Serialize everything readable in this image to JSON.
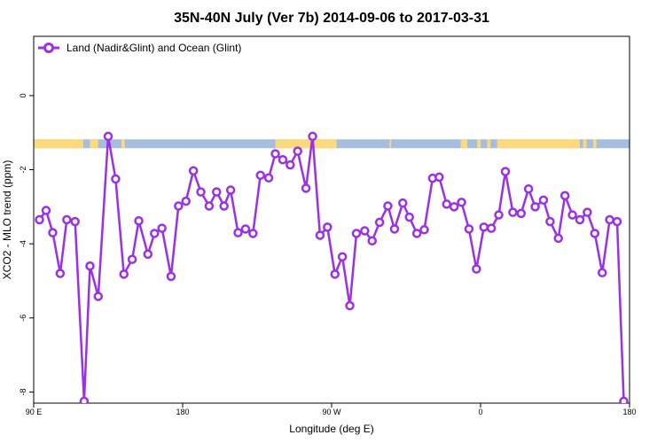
{
  "chart_data": {
    "type": "line",
    "title": "35N-40N July (Ver 7b)   2014-09-06 to 2017-03-31",
    "xlabel": "Longitude (deg E)",
    "ylabel": "XCO2 - MLO trend (ppm)",
    "xlim": [
      90,
      450
    ],
    "ylim": [
      -8.3,
      1.6
    ],
    "x_ticks": [
      {
        "value": 90,
        "label": "90 E"
      },
      {
        "value": 180,
        "label": "180"
      },
      {
        "value": 270,
        "label": "90 W"
      },
      {
        "value": 360,
        "label": "0"
      },
      {
        "value": 450,
        "label": "180"
      }
    ],
    "y_ticks": [
      {
        "value": 0,
        "label": "0"
      },
      {
        "value": -2,
        "label": "-2"
      },
      {
        "value": -4,
        "label": "-4"
      },
      {
        "value": -6,
        "label": "-6"
      },
      {
        "value": -8,
        "label": "-8"
      }
    ],
    "grid": false,
    "legend": {
      "position": "top-left",
      "entries": [
        "Land (Nadir&Glint) and Ocean (Glint)"
      ]
    },
    "colors": {
      "series": "#9b30e6",
      "land": "#fcd97a",
      "ocean": "#a5bddf"
    },
    "surface_band": {
      "y_top": -1.18,
      "y_bottom": -1.42,
      "land_ranges": [
        [
          90,
          120
        ],
        [
          124,
          129
        ],
        [
          143,
          145
        ],
        [
          236,
          273
        ],
        [
          305,
          306
        ],
        [
          348,
          352
        ],
        [
          358,
          360
        ],
        [
          364,
          366
        ],
        [
          370,
          420
        ],
        [
          422,
          424
        ],
        [
          428,
          430
        ]
      ]
    },
    "series": [
      {
        "name": "Land (Nadir&Glint) and Ocean (Glint)",
        "x": [
          93.5,
          97.5,
          101.5,
          106,
          110,
          115,
          120.5,
          124,
          129,
          135,
          139.5,
          144.5,
          149.5,
          153.5,
          159,
          163,
          167.5,
          173,
          177.5,
          182,
          186.5,
          191,
          196,
          200.5,
          205,
          209,
          213.5,
          218,
          222.5,
          227,
          232,
          236,
          240.5,
          245,
          249.5,
          254.5,
          258.5,
          263,
          267.5,
          272,
          276.5,
          281,
          285,
          290,
          294.5,
          299,
          304,
          308,
          313,
          317,
          321.5,
          326,
          331,
          335,
          339.5,
          344,
          348.5,
          353,
          357.5,
          362,
          366.5,
          371,
          375,
          379.5,
          384.5,
          389,
          393,
          398,
          402,
          407,
          411,
          415.5,
          420,
          424.5,
          429,
          433.5,
          438,
          442.5,
          446.5
        ],
        "y": [
          -3.35,
          -3.1,
          -3.7,
          -4.8,
          -3.35,
          -3.4,
          -8.25,
          -4.6,
          -5.42,
          -1.1,
          -2.25,
          -4.82,
          -4.42,
          -3.38,
          -4.28,
          -3.72,
          -3.58,
          -4.88,
          -2.98,
          -2.85,
          -2.03,
          -2.6,
          -2.98,
          -2.6,
          -2.98,
          -2.55,
          -3.7,
          -3.6,
          -3.72,
          -2.15,
          -2.22,
          -1.57,
          -1.73,
          -1.87,
          -1.5,
          -2.5,
          -1.1,
          -3.77,
          -3.55,
          -4.82,
          -4.35,
          -5.67,
          -3.72,
          -3.65,
          -3.92,
          -3.42,
          -2.98,
          -3.6,
          -2.9,
          -3.28,
          -3.72,
          -3.62,
          -2.23,
          -2.2,
          -2.93,
          -3.0,
          -2.88,
          -3.6,
          -4.68,
          -3.55,
          -3.58,
          -3.22,
          -2.05,
          -3.15,
          -3.18,
          -2.52,
          -3.0,
          -2.82,
          -3.4,
          -3.85,
          -2.7,
          -3.22,
          -3.35,
          -3.15,
          -3.72,
          -4.78,
          -3.35,
          -3.4,
          -8.25
        ]
      }
    ]
  }
}
